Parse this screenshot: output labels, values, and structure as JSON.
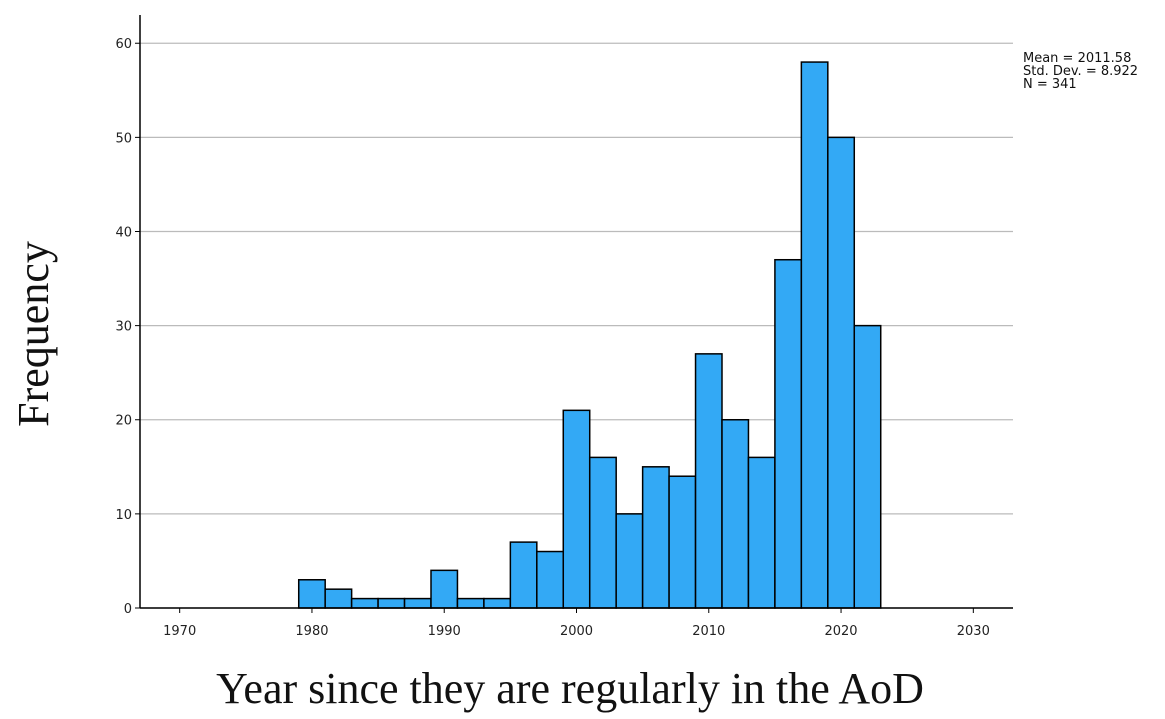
{
  "chart_data": {
    "type": "histogram",
    "bins": [
      1979,
      1981,
      1983,
      1985,
      1987,
      1989,
      1991,
      1993,
      1995,
      1997,
      1999,
      2001,
      2003,
      2005,
      2007,
      2009,
      2011,
      2013,
      2015,
      2017,
      2019,
      2021,
      2023
    ],
    "counts": [
      3,
      2,
      1,
      1,
      1,
      4,
      1,
      1,
      7,
      6,
      21,
      16,
      10,
      15,
      14,
      27,
      20,
      16,
      37,
      58,
      50,
      30
    ],
    "color": "#33a9f5",
    "xlim": [
      1967,
      2033
    ],
    "xticks": [
      1970,
      1980,
      1990,
      2000,
      2010,
      2020,
      2030
    ],
    "ylim": [
      0,
      63
    ],
    "yticks": [
      0,
      10,
      20,
      30,
      40,
      50,
      60
    ],
    "grid": true,
    "xlabel": "Year since they are regularly in the AoD",
    "ylabel": "Frequency",
    "stats": [
      "Mean = 2011.58",
      "Std. Dev. = 8.922",
      "N = 341"
    ]
  }
}
